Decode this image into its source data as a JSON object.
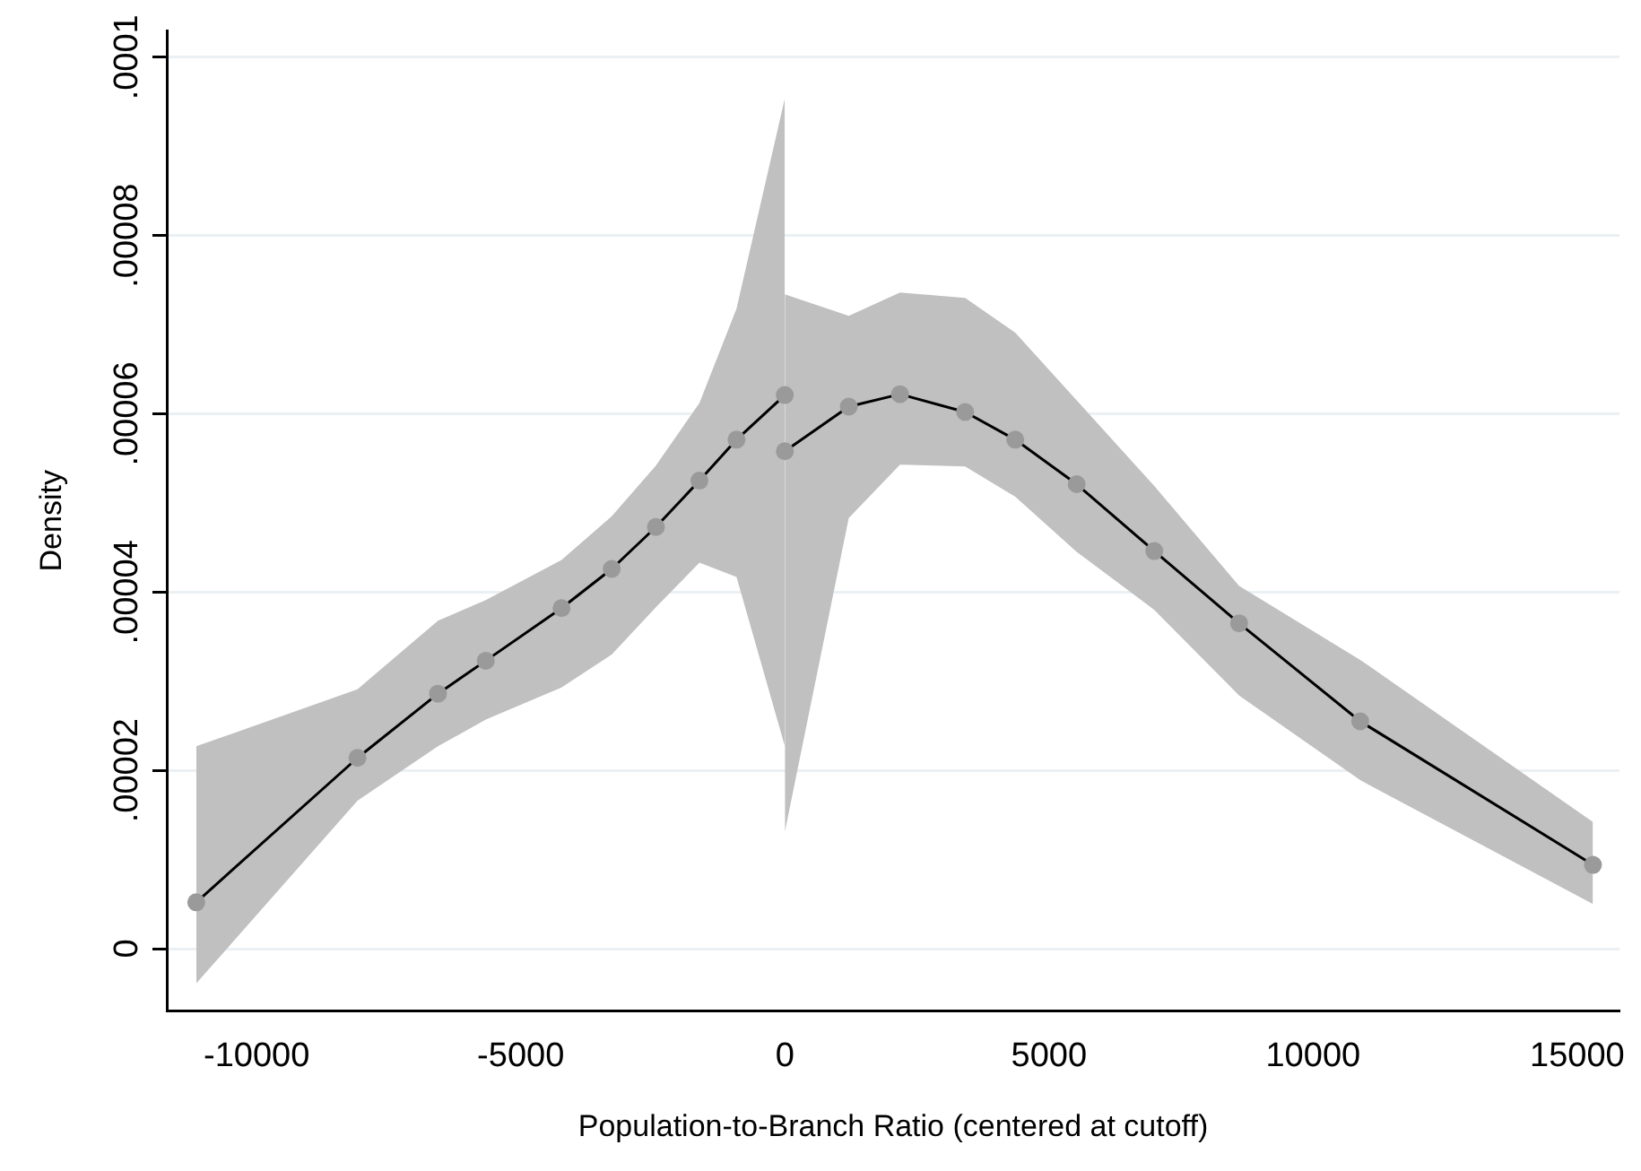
{
  "chart_data": {
    "type": "line",
    "xlabel": "Population-to-Branch Ratio (centered at cutoff)",
    "ylabel": "Density",
    "series": [
      {
        "color": "#000000",
        "x": [
          -11142,
          -8090,
          -6566,
          -5661,
          -4227,
          -3277,
          -2441,
          -1617,
          -915,
          0
        ],
        "values": [
          5.2e-06,
          2.14e-05,
          2.86e-05,
          3.23e-05,
          3.82e-05,
          4.26e-05,
          4.73e-05,
          5.25e-05,
          5.71e-05,
          6.21e-05
        ],
        "lower": [
          -3.9e-06,
          1.66e-05,
          2.27e-05,
          2.57e-05,
          2.93e-05,
          3.3e-05,
          3.83e-05,
          4.33e-05,
          4.17e-05,
          2.27e-05
        ],
        "upper": [
          2.27e-05,
          2.91e-05,
          3.68e-05,
          3.91e-05,
          4.36e-05,
          4.85e-05,
          5.42e-05,
          6.12e-05,
          7.18e-05,
          9.54e-05
        ]
      },
      {
        "color": "#000000",
        "x": [
          0,
          1210,
          2180,
          3413,
          4362,
          5525,
          6994,
          8600,
          10892,
          15298
        ],
        "values": [
          5.58e-05,
          6.08e-05,
          6.22e-05,
          6.02e-05,
          5.71e-05,
          5.21e-05,
          4.46e-05,
          3.65e-05,
          2.55e-05,
          9.4e-06
        ],
        "lower": [
          1.31e-05,
          4.83e-05,
          5.43e-05,
          5.41e-05,
          5.07e-05,
          4.45e-05,
          3.8e-05,
          2.84e-05,
          1.89e-05,
          5e-06
        ],
        "upper": [
          7.34e-05,
          7.1e-05,
          7.36e-05,
          7.3e-05,
          6.91e-05,
          6.15e-05,
          5.19e-05,
          4.07e-05,
          3.24e-05,
          1.42e-05
        ]
      }
    ],
    "xlim": [
      -11700,
      15800
    ],
    "xticks": [
      -10000,
      -5000,
      0,
      5000,
      10000,
      15000
    ],
    "ylim": [
      -7e-06,
      0.000103
    ],
    "yticks": [
      {
        "value": 0,
        "label": "0"
      },
      {
        "value": 2e-05,
        "label": ".00002"
      },
      {
        "value": 4e-05,
        "label": ".00004"
      },
      {
        "value": 6e-05,
        "label": ".00006"
      },
      {
        "value": 8e-05,
        "label": ".00008"
      },
      {
        "value": 0.0001,
        "label": ".0001"
      }
    ],
    "grid": "y",
    "marker": "circle",
    "line_style": "solid",
    "legend": false
  }
}
